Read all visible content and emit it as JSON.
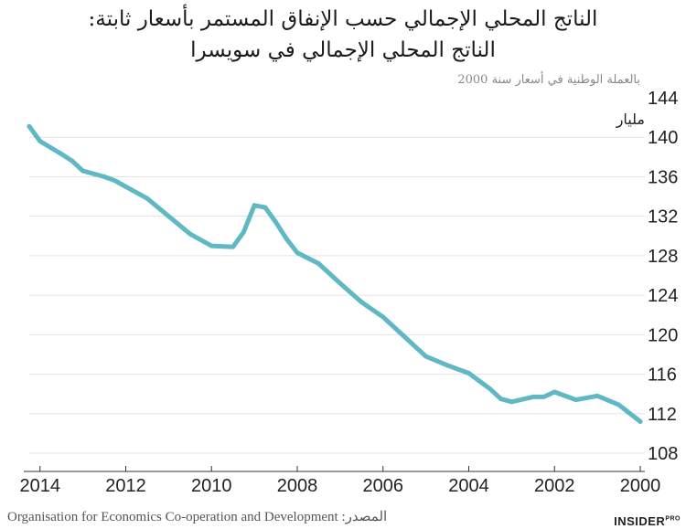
{
  "title_line1": "الناتج المحلي الإجمالي حسب الإنفاق المستمر بأسعار ثابتة:",
  "title_line2": "الناتج المحلي الإجمالي في سويسرا",
  "unit_note": "بالعملة الوطنية في أسعار سنة 2000",
  "y_top_unit": "مليار",
  "source_text": "Organisation for Economics Co-operation and Development :المصدر",
  "brand_main": "INSIDER",
  "brand_sup": "PRO",
  "colors": {
    "line": "#5fb8c4",
    "grid": "#e3e3e3"
  },
  "chart_data": {
    "type": "line",
    "title": "الناتج المحلي الإجمالي حسب الإنفاق المستمر بأسعار ثابتة: الناتج المحلي الإجمالي في سويسرا",
    "ylabel": "بالعملة الوطنية في أسعار سنة 2000",
    "x_axis_reversed": true,
    "xlim": [
      2000.0,
      2014.25
    ],
    "ylim": [
      108,
      144
    ],
    "x_ticks": [
      2014,
      2012,
      2010,
      2008,
      2006,
      2004,
      2002,
      2000
    ],
    "y_ticks": [
      108,
      112,
      116,
      120,
      124,
      128,
      132,
      136,
      140,
      144
    ],
    "grid": true,
    "series": [
      {
        "x": [
          2000.0,
          2000.5,
          2001.0,
          2001.5,
          2002.0,
          2002.25,
          2002.5,
          2003.0,
          2003.25,
          2003.5,
          2004.0,
          2004.5,
          2005.0,
          2005.5,
          2006.0,
          2006.5,
          2007.0,
          2007.5,
          2008.0,
          2008.25,
          2008.5,
          2008.75,
          2009.0,
          2009.25,
          2009.5,
          2010.0,
          2010.5,
          2011.0,
          2011.5,
          2012.0,
          2012.25,
          2012.5,
          2013.0,
          2013.25,
          2013.5,
          2014.0,
          2014.25
        ],
        "y": [
          111.2,
          112.9,
          113.8,
          113.4,
          114.2,
          113.7,
          113.7,
          113.2,
          113.5,
          114.5,
          116.1,
          116.9,
          117.8,
          119.8,
          121.8,
          123.3,
          125.2,
          127.2,
          128.3,
          129.7,
          131.4,
          132.9,
          133.1,
          130.4,
          128.9,
          129.0,
          130.2,
          132.0,
          133.8,
          135.0,
          135.6,
          136.0,
          136.6,
          137.6,
          138.3,
          139.6,
          141.1
        ]
      }
    ]
  }
}
